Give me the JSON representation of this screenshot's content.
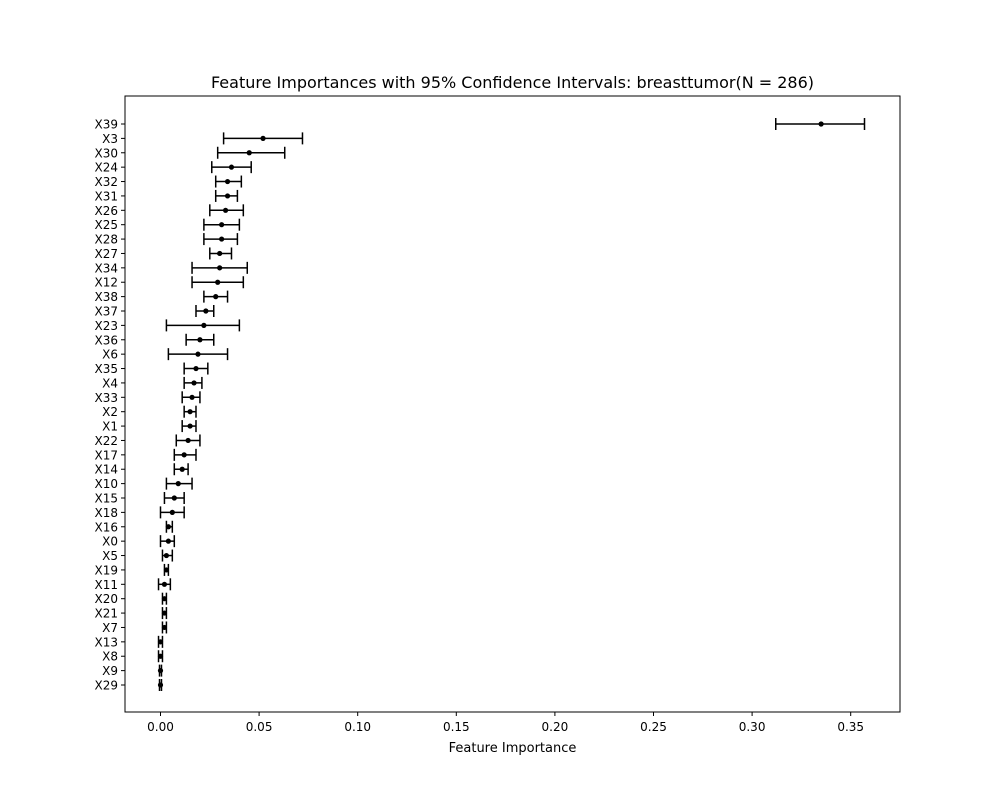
{
  "chart_data": {
    "type": "scatter",
    "title": "Feature Importances with 95% Confidence Intervals: breasttumor(N = 286)",
    "xlabel": "Feature Importance",
    "ylabel": "",
    "xlim": [
      -0.018,
      0.375
    ],
    "xticks": [
      0.0,
      0.05,
      0.1,
      0.15,
      0.2,
      0.25,
      0.3,
      0.35
    ],
    "xtick_labels": [
      "0.00",
      "0.05",
      "0.10",
      "0.15",
      "0.20",
      "0.25",
      "0.30",
      "0.35"
    ],
    "grid": false,
    "legend": "none",
    "marker_color": "#000000",
    "features": [
      {
        "name": "X39",
        "value": 0.335,
        "ci_low": 0.312,
        "ci_high": 0.357
      },
      {
        "name": "X3",
        "value": 0.052,
        "ci_low": 0.032,
        "ci_high": 0.072
      },
      {
        "name": "X30",
        "value": 0.045,
        "ci_low": 0.029,
        "ci_high": 0.063
      },
      {
        "name": "X24",
        "value": 0.036,
        "ci_low": 0.026,
        "ci_high": 0.046
      },
      {
        "name": "X32",
        "value": 0.034,
        "ci_low": 0.028,
        "ci_high": 0.041
      },
      {
        "name": "X31",
        "value": 0.034,
        "ci_low": 0.028,
        "ci_high": 0.039
      },
      {
        "name": "X26",
        "value": 0.033,
        "ci_low": 0.025,
        "ci_high": 0.042
      },
      {
        "name": "X25",
        "value": 0.031,
        "ci_low": 0.022,
        "ci_high": 0.04
      },
      {
        "name": "X28",
        "value": 0.031,
        "ci_low": 0.022,
        "ci_high": 0.039
      },
      {
        "name": "X27",
        "value": 0.03,
        "ci_low": 0.025,
        "ci_high": 0.036
      },
      {
        "name": "X34",
        "value": 0.03,
        "ci_low": 0.016,
        "ci_high": 0.044
      },
      {
        "name": "X12",
        "value": 0.029,
        "ci_low": 0.016,
        "ci_high": 0.042
      },
      {
        "name": "X38",
        "value": 0.028,
        "ci_low": 0.022,
        "ci_high": 0.034
      },
      {
        "name": "X37",
        "value": 0.023,
        "ci_low": 0.018,
        "ci_high": 0.027
      },
      {
        "name": "X23",
        "value": 0.022,
        "ci_low": 0.003,
        "ci_high": 0.04
      },
      {
        "name": "X36",
        "value": 0.02,
        "ci_low": 0.013,
        "ci_high": 0.027
      },
      {
        "name": "X6",
        "value": 0.019,
        "ci_low": 0.004,
        "ci_high": 0.034
      },
      {
        "name": "X35",
        "value": 0.018,
        "ci_low": 0.012,
        "ci_high": 0.024
      },
      {
        "name": "X4",
        "value": 0.017,
        "ci_low": 0.012,
        "ci_high": 0.021
      },
      {
        "name": "X33",
        "value": 0.016,
        "ci_low": 0.011,
        "ci_high": 0.02
      },
      {
        "name": "X2",
        "value": 0.015,
        "ci_low": 0.012,
        "ci_high": 0.018
      },
      {
        "name": "X1",
        "value": 0.015,
        "ci_low": 0.011,
        "ci_high": 0.018
      },
      {
        "name": "X22",
        "value": 0.014,
        "ci_low": 0.008,
        "ci_high": 0.02
      },
      {
        "name": "X17",
        "value": 0.012,
        "ci_low": 0.007,
        "ci_high": 0.018
      },
      {
        "name": "X14",
        "value": 0.011,
        "ci_low": 0.007,
        "ci_high": 0.014
      },
      {
        "name": "X10",
        "value": 0.009,
        "ci_low": 0.003,
        "ci_high": 0.016
      },
      {
        "name": "X15",
        "value": 0.007,
        "ci_low": 0.002,
        "ci_high": 0.012
      },
      {
        "name": "X18",
        "value": 0.006,
        "ci_low": 0.0,
        "ci_high": 0.012
      },
      {
        "name": "X16",
        "value": 0.004,
        "ci_low": 0.003,
        "ci_high": 0.006
      },
      {
        "name": "X0",
        "value": 0.004,
        "ci_low": 0.0,
        "ci_high": 0.007
      },
      {
        "name": "X5",
        "value": 0.003,
        "ci_low": 0.001,
        "ci_high": 0.006
      },
      {
        "name": "X19",
        "value": 0.003,
        "ci_low": 0.002,
        "ci_high": 0.004
      },
      {
        "name": "X11",
        "value": 0.002,
        "ci_low": -0.001,
        "ci_high": 0.005
      },
      {
        "name": "X20",
        "value": 0.002,
        "ci_low": 0.001,
        "ci_high": 0.003
      },
      {
        "name": "X21",
        "value": 0.002,
        "ci_low": 0.001,
        "ci_high": 0.003
      },
      {
        "name": "X7",
        "value": 0.002,
        "ci_low": 0.001,
        "ci_high": 0.003
      },
      {
        "name": "X13",
        "value": 0.0,
        "ci_low": -0.001,
        "ci_high": 0.001
      },
      {
        "name": "X8",
        "value": 0.0,
        "ci_low": -0.001,
        "ci_high": 0.001
      },
      {
        "name": "X9",
        "value": 0.0,
        "ci_low": -0.0005,
        "ci_high": 0.0005
      },
      {
        "name": "X29",
        "value": 0.0,
        "ci_low": -0.0005,
        "ci_high": 0.0005
      }
    ]
  }
}
